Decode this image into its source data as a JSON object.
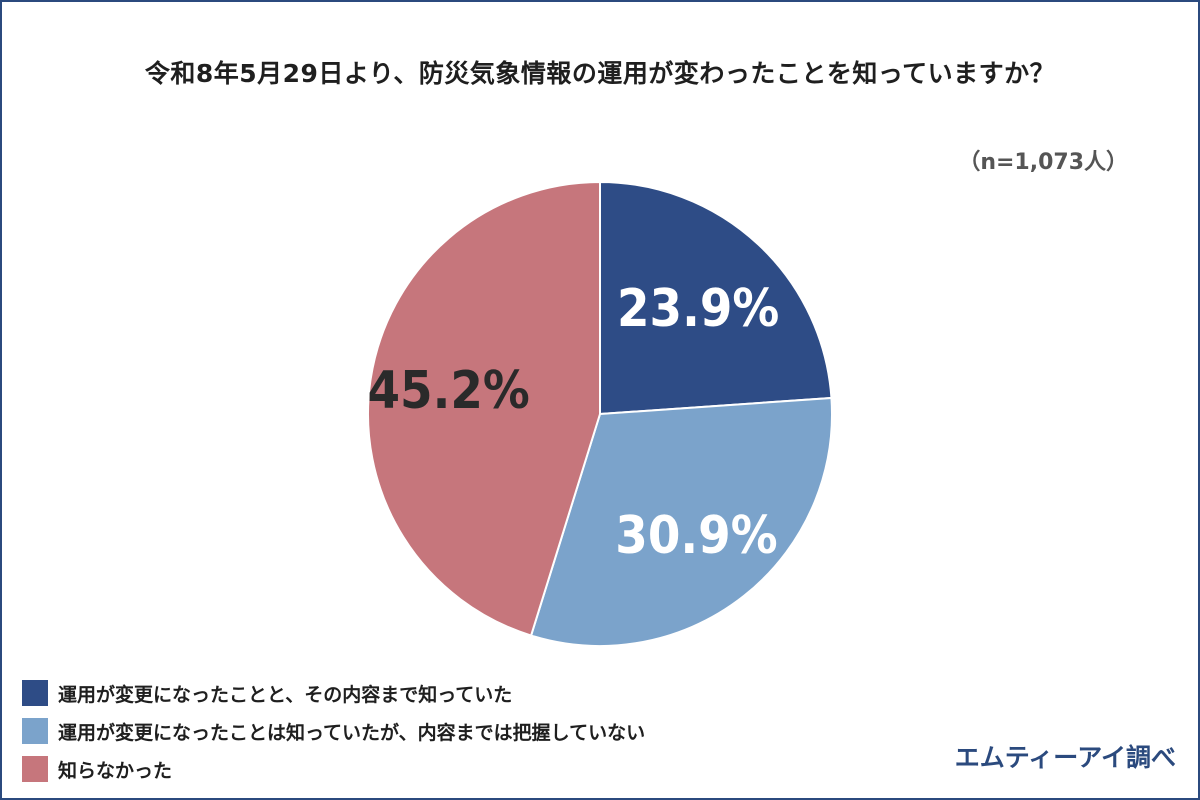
{
  "chart_data": {
    "type": "pie",
    "title": "令和8年5月29日より、防災気象情報の運用が変わったことを知っていますか？",
    "sample_size": "（n=1,073人）",
    "slices": [
      {
        "label": "運用が変更になったことと、その内容まで知っていた",
        "value": 23.9,
        "display": "23.9%",
        "color": "#2e4c86",
        "label_color": "#ffffff"
      },
      {
        "label": "運用が変更になったことは知っていたが、内容までは把握していない",
        "value": 30.9,
        "display": "30.9%",
        "color": "#7ba3cb",
        "label_color": "#ffffff"
      },
      {
        "label": "知らなかった",
        "value": 45.2,
        "display": "45.2%",
        "color": "#c6767c",
        "label_color": "#2a2a2a"
      }
    ],
    "start_angle": "12 o'clock",
    "direction": "clockwise",
    "legend_position": "bottom-left"
  },
  "source": "エムティーアイ調べ"
}
